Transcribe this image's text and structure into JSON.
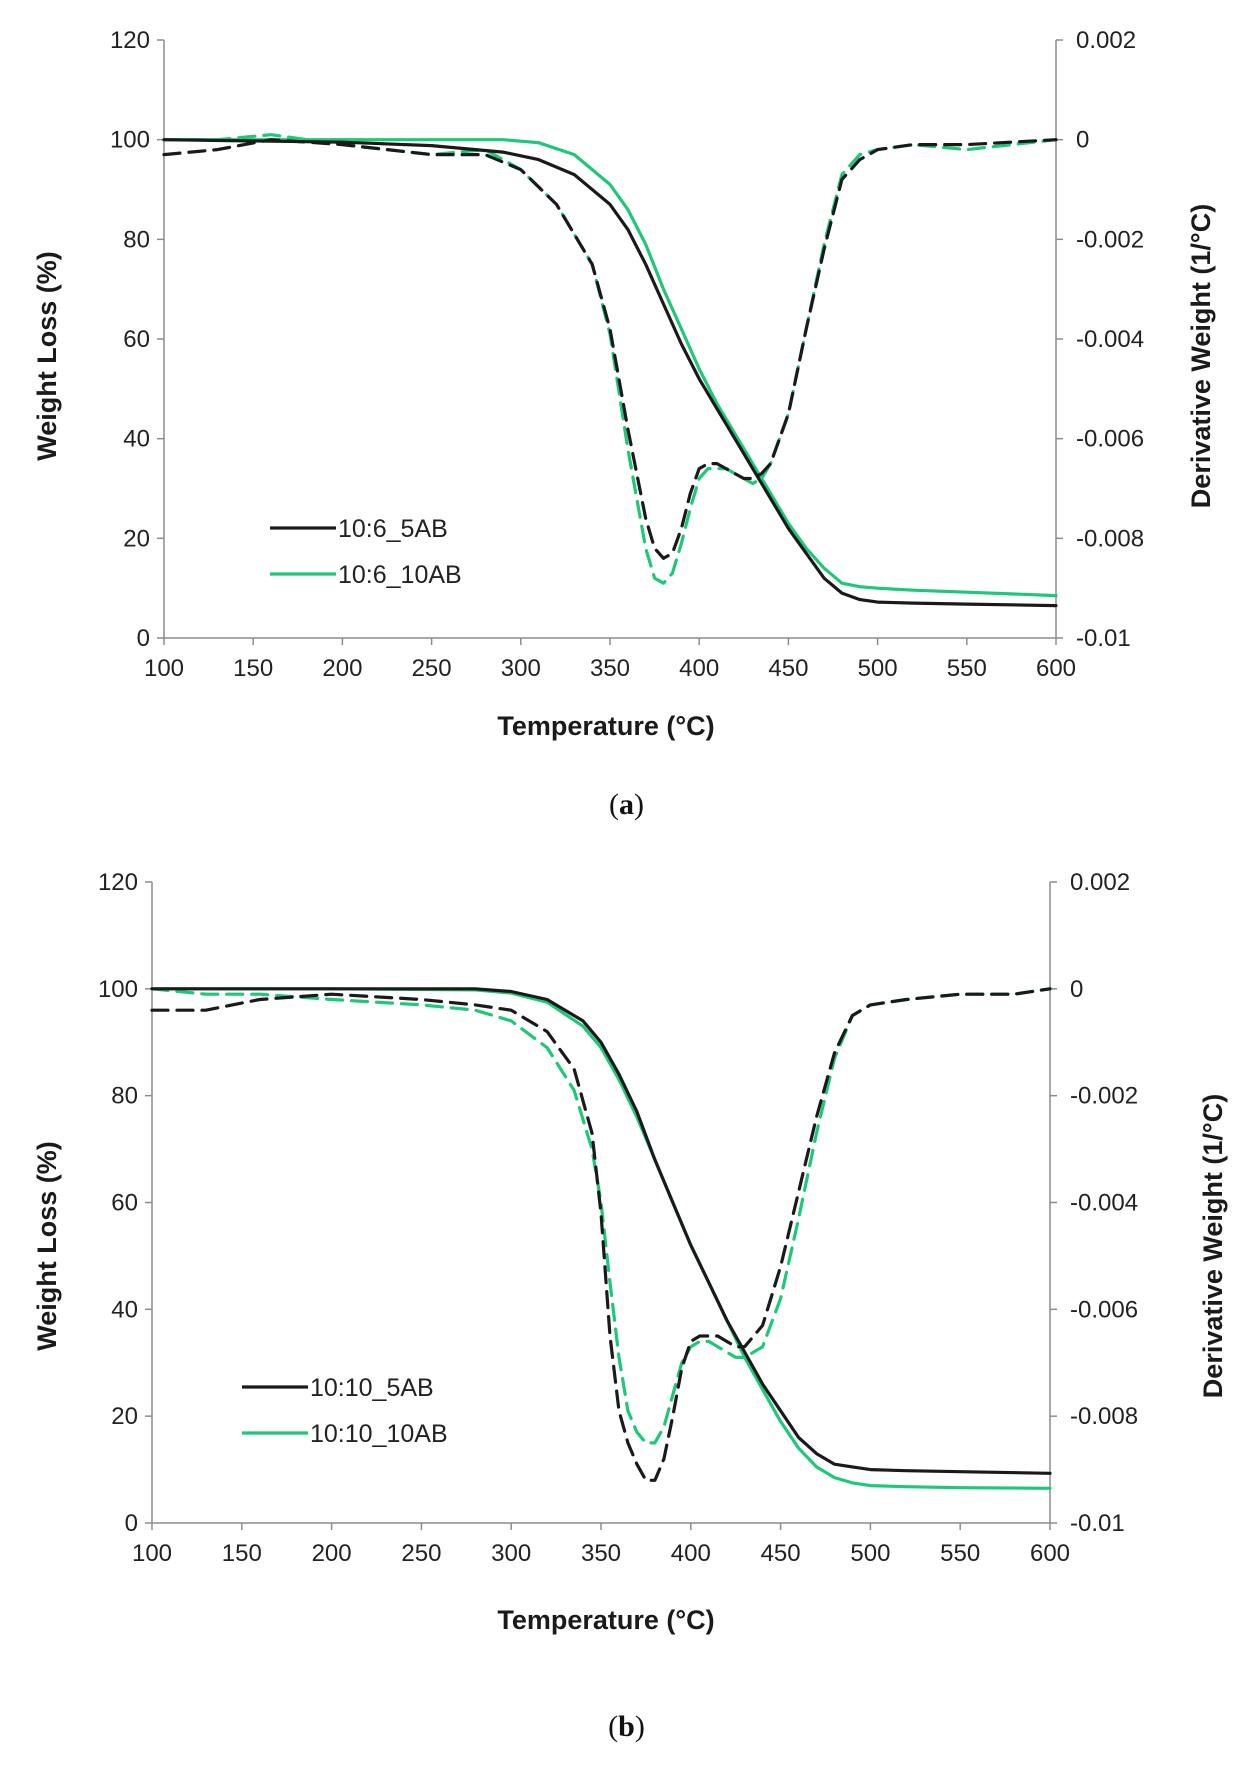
{
  "colors": {
    "black": "#1a1a1a",
    "green": "#1ec878",
    "axis": "#8c8c8c"
  },
  "panels": [
    {
      "caption": "a"
    },
    {
      "caption": "b"
    }
  ],
  "chart_data": [
    {
      "type": "line",
      "panel": "a",
      "xlabel": "Temperature (°C)",
      "ylabel": "Weight Loss (%)",
      "y2label": "Derivative Weight (1/°C)",
      "xlim": [
        100,
        600
      ],
      "ylim": [
        0,
        120
      ],
      "y2lim": [
        -0.01,
        0.002
      ],
      "xticks": [
        "100",
        "150",
        "200",
        "250",
        "300",
        "350",
        "400",
        "450",
        "500",
        "550",
        "600"
      ],
      "yticks": [
        "0",
        "20",
        "40",
        "60",
        "80",
        "100",
        "120"
      ],
      "y2ticks": [
        "-0.01",
        "-0.008",
        "-0.006",
        "-0.004",
        "-0.002",
        "0",
        "0.002"
      ],
      "legend_position": "bottom-left",
      "series": [
        {
          "name": "10:6_5AB",
          "color": "black",
          "axis": "left",
          "style": "solid",
          "x": [
            100,
            200,
            250,
            290,
            310,
            330,
            350,
            360,
            370,
            380,
            390,
            400,
            410,
            420,
            430,
            440,
            450,
            460,
            470,
            480,
            490,
            500,
            520,
            550,
            600
          ],
          "y": [
            100,
            99.5,
            98.8,
            97.5,
            96,
            93,
            87,
            82,
            75,
            67,
            59,
            52,
            46,
            40,
            34,
            28,
            22,
            17,
            12,
            9,
            7.7,
            7.2,
            7,
            6.8,
            6.5
          ]
        },
        {
          "name": "10:6_10AB",
          "color": "green",
          "axis": "left",
          "style": "solid",
          "x": [
            100,
            200,
            250,
            290,
            310,
            330,
            350,
            360,
            370,
            380,
            390,
            400,
            410,
            420,
            430,
            440,
            450,
            460,
            470,
            480,
            490,
            500,
            520,
            550,
            600
          ],
          "y": [
            100,
            100,
            100,
            100,
            99.4,
            97,
            91,
            86,
            79,
            70,
            62,
            54,
            47,
            41,
            35,
            29,
            23,
            18,
            14,
            11,
            10.3,
            10,
            9.6,
            9.2,
            8.5
          ]
        },
        {
          "name": "10:6_5AB derivative",
          "color": "black",
          "axis": "right",
          "style": "dashed",
          "x": [
            100,
            130,
            160,
            200,
            250,
            280,
            300,
            320,
            340,
            350,
            360,
            370,
            375,
            380,
            385,
            390,
            395,
            400,
            405,
            410,
            415,
            420,
            425,
            430,
            435,
            440,
            450,
            460,
            470,
            480,
            490,
            500,
            520,
            550,
            600
          ],
          "y": [
            -0.0003,
            -0.0002,
            0,
            -0.0001,
            -0.0003,
            -0.0003,
            -0.0006,
            -0.0013,
            -0.0025,
            -0.0038,
            -0.0058,
            -0.0076,
            -0.0082,
            -0.0084,
            -0.0083,
            -0.0078,
            -0.0071,
            -0.0066,
            -0.0065,
            -0.0065,
            -0.0066,
            -0.0067,
            -0.0068,
            -0.0068,
            -0.0067,
            -0.0065,
            -0.0055,
            -0.0038,
            -0.0022,
            -0.0008,
            -0.0004,
            -0.0002,
            -0.0001,
            -0.0001,
            0
          ]
        },
        {
          "name": "10:6_10AB derivative",
          "color": "green",
          "axis": "right",
          "style": "dashed",
          "x": [
            100,
            130,
            160,
            200,
            250,
            280,
            300,
            320,
            340,
            350,
            360,
            370,
            375,
            380,
            385,
            390,
            395,
            400,
            405,
            410,
            415,
            420,
            425,
            430,
            435,
            440,
            450,
            460,
            470,
            480,
            490,
            500,
            520,
            550,
            600
          ],
          "y": [
            0,
            0,
            0.0001,
            -0.0001,
            -0.0003,
            -0.0002,
            -0.0006,
            -0.0013,
            -0.0025,
            -0.0039,
            -0.0062,
            -0.0082,
            -0.0088,
            -0.0089,
            -0.0087,
            -0.0081,
            -0.0074,
            -0.0068,
            -0.0066,
            -0.0066,
            -0.0066,
            -0.0067,
            -0.0068,
            -0.0069,
            -0.0068,
            -0.0065,
            -0.0055,
            -0.0038,
            -0.0021,
            -0.0007,
            -0.0003,
            -0.0002,
            -0.0001,
            -0.0002,
            0
          ]
        }
      ]
    },
    {
      "type": "line",
      "panel": "b",
      "xlabel": "Temperature (°C)",
      "ylabel": "Weight Loss (%)",
      "y2label": "Derivative Weight (1/°C)",
      "xlim": [
        100,
        600
      ],
      "ylim": [
        0,
        120
      ],
      "y2lim": [
        -0.01,
        0.002
      ],
      "xticks": [
        "100",
        "150",
        "200",
        "250",
        "300",
        "350",
        "400",
        "450",
        "500",
        "550",
        "600"
      ],
      "yticks": [
        "0",
        "20",
        "40",
        "60",
        "80",
        "100",
        "120"
      ],
      "y2ticks": [
        "-0.01",
        "-0.008",
        "-0.006",
        "-0.004",
        "-0.002",
        "0",
        "0.002"
      ],
      "legend_position": "bottom-left",
      "series": [
        {
          "name": "10:10_5AB",
          "color": "black",
          "axis": "left",
          "style": "solid",
          "x": [
            100,
            200,
            280,
            300,
            320,
            340,
            350,
            360,
            370,
            380,
            390,
            400,
            410,
            420,
            430,
            440,
            450,
            460,
            470,
            480,
            490,
            500,
            520,
            550,
            600
          ],
          "y": [
            100,
            100,
            100,
            99.5,
            98,
            94,
            90,
            84,
            77,
            68,
            60,
            52,
            45,
            38,
            32,
            26,
            21,
            16,
            13,
            11,
            10.5,
            10,
            9.8,
            9.6,
            9.3
          ]
        },
        {
          "name": "10:10_10AB",
          "color": "green",
          "axis": "left",
          "style": "solid",
          "x": [
            100,
            200,
            280,
            300,
            320,
            340,
            350,
            360,
            370,
            380,
            390,
            400,
            410,
            420,
            430,
            440,
            450,
            460,
            470,
            480,
            490,
            500,
            520,
            550,
            600
          ],
          "y": [
            100,
            100,
            99.8,
            99.2,
            97.5,
            93,
            89,
            83,
            76,
            68,
            60,
            52,
            45,
            38,
            31,
            25,
            19,
            14,
            10.5,
            8.5,
            7.5,
            7,
            6.8,
            6.6,
            6.5
          ]
        },
        {
          "name": "10:10_5AB derivative",
          "color": "black",
          "axis": "right",
          "style": "dashed",
          "x": [
            100,
            130,
            160,
            200,
            250,
            280,
            300,
            320,
            335,
            345,
            350,
            355,
            360,
            365,
            370,
            375,
            380,
            385,
            390,
            395,
            400,
            405,
            410,
            415,
            420,
            425,
            430,
            440,
            450,
            460,
            470,
            480,
            490,
            500,
            520,
            550,
            580,
            600
          ],
          "y": [
            -0.0004,
            -0.0004,
            -0.0002,
            -0.0001,
            -0.0002,
            -0.0003,
            -0.0004,
            -0.0008,
            -0.0015,
            -0.0027,
            -0.0042,
            -0.0065,
            -0.0079,
            -0.0085,
            -0.0089,
            -0.0092,
            -0.0092,
            -0.0088,
            -0.008,
            -0.0071,
            -0.0066,
            -0.0065,
            -0.0065,
            -0.0065,
            -0.0066,
            -0.0067,
            -0.0067,
            -0.0063,
            -0.0052,
            -0.0038,
            -0.0024,
            -0.0012,
            -0.0005,
            -0.0003,
            -0.0002,
            -0.0001,
            -0.0001,
            0
          ]
        },
        {
          "name": "10:10_10AB derivative",
          "color": "green",
          "axis": "right",
          "style": "dashed",
          "x": [
            100,
            130,
            160,
            200,
            250,
            280,
            300,
            320,
            335,
            345,
            350,
            355,
            360,
            365,
            370,
            375,
            380,
            385,
            390,
            395,
            400,
            405,
            410,
            415,
            420,
            425,
            430,
            440,
            450,
            460,
            470,
            480,
            490,
            500,
            520,
            550,
            580,
            600
          ],
          "y": [
            0,
            -0.0001,
            -0.0001,
            -0.0002,
            -0.0003,
            -0.0004,
            -0.0006,
            -0.0011,
            -0.0019,
            -0.003,
            -0.004,
            -0.0055,
            -0.0069,
            -0.0079,
            -0.0083,
            -0.0085,
            -0.0085,
            -0.0082,
            -0.0076,
            -0.007,
            -0.0067,
            -0.0066,
            -0.0066,
            -0.0067,
            -0.0068,
            -0.0069,
            -0.0069,
            -0.0067,
            -0.0058,
            -0.0043,
            -0.0027,
            -0.0013,
            -0.0005,
            -0.0003,
            -0.0002,
            -0.0001,
            -0.0001,
            0
          ]
        }
      ]
    }
  ]
}
